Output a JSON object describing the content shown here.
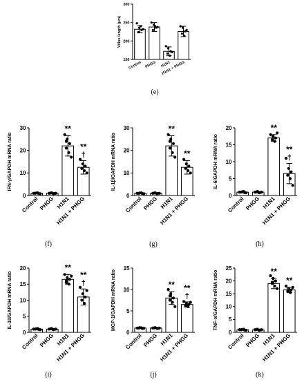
{
  "chart_data": [
    {
      "panel": "(e)",
      "type": "bar",
      "categories": [
        "Control",
        "PHGG",
        "H1N1",
        "H1N1 + PHGG"
      ],
      "values": [
        232,
        238,
        172,
        226
      ],
      "errors": [
        10,
        12,
        12,
        14
      ],
      "points": [
        [
          248,
          236,
          230,
          224,
          240,
          232
        ],
        [
          250,
          244,
          236,
          230,
          240,
          238
        ],
        [
          186,
          180,
          172,
          166,
          160,
          170
        ],
        [
          240,
          236,
          226,
          220,
          214,
          230
        ]
      ],
      "ylabel": "Villus length (μm)",
      "ylim": [
        150,
        300
      ],
      "yticks": [
        150,
        200,
        250,
        300
      ],
      "significance": [
        "",
        "",
        "",
        ""
      ]
    },
    {
      "panel": "(f)",
      "type": "bar",
      "categories": [
        "Control",
        "PHGG",
        "H1N1",
        "H1N1 + PHGG"
      ],
      "values": [
        1,
        1,
        22,
        12.5
      ],
      "errors": [
        0.2,
        0.2,
        4.5,
        3
      ],
      "points": [
        [
          1,
          1.1,
          0.9,
          1,
          1.2,
          0.8
        ],
        [
          1,
          1.2,
          0.9,
          1.1,
          0.8,
          1
        ],
        [
          27,
          25,
          23,
          21,
          19,
          17,
          24
        ],
        [
          16,
          14,
          13,
          12,
          11,
          10
        ]
      ],
      "ylabel": "IFN-γ/GAPDH mRNA ratio",
      "ylim": [
        0,
        30
      ],
      "yticks": [
        0,
        10,
        20,
        30
      ],
      "significance": [
        "",
        "",
        "**",
        "**\n†"
      ]
    },
    {
      "panel": "(g)",
      "type": "bar",
      "categories": [
        "Control",
        "PHGG",
        "H1N1",
        "H1N1 + PHGG"
      ],
      "values": [
        1,
        1,
        22,
        12.5
      ],
      "errors": [
        0.2,
        0.2,
        4.5,
        3
      ],
      "points": [
        [
          1,
          1.1,
          0.9,
          1,
          1.2,
          0.8
        ],
        [
          1,
          1.2,
          0.9,
          1.1,
          0.8,
          1
        ],
        [
          27,
          25,
          23,
          21,
          19,
          17,
          24
        ],
        [
          16,
          14,
          13,
          12,
          11,
          10
        ]
      ],
      "ylabel": "IL-1β/GAPDH mRNA ratio",
      "ylim": [
        0,
        30
      ],
      "yticks": [
        0,
        10,
        20,
        30
      ],
      "significance": [
        "",
        "",
        "**",
        "**"
      ]
    },
    {
      "panel": "(h)",
      "type": "bar",
      "categories": [
        "Control",
        "PHGG",
        "H1N1",
        "H1N1 + PHGG"
      ],
      "values": [
        1,
        1,
        17,
        6.5
      ],
      "errors": [
        0.2,
        0.2,
        1,
        3
      ],
      "points": [
        [
          1,
          1.1,
          0.9,
          1,
          1.2,
          0.8
        ],
        [
          1,
          1.2,
          0.9,
          1.1,
          0.8,
          1
        ],
        [
          18,
          17.5,
          17,
          16.5,
          16,
          18.5
        ],
        [
          11,
          8,
          7,
          6,
          5,
          3
        ]
      ],
      "ylabel": "IL-6/GAPDH mRNA ratio",
      "ylim": [
        0,
        20
      ],
      "yticks": [
        0,
        5,
        10,
        15,
        20
      ],
      "significance": [
        "",
        "",
        "**",
        "**\n†"
      ]
    },
    {
      "panel": "(i)",
      "type": "bar",
      "categories": [
        "Control",
        "PHGG",
        "H1N1",
        "H1N1 + PHGG"
      ],
      "values": [
        1,
        1,
        16.5,
        11
      ],
      "errors": [
        0.2,
        0.2,
        1.5,
        2.5
      ],
      "points": [
        [
          1,
          1.1,
          0.9,
          1,
          1.2,
          0.8
        ],
        [
          1,
          1.2,
          0.9,
          1.1,
          0.8,
          1
        ],
        [
          18,
          17,
          16.5,
          16,
          15,
          17.5,
          15.5
        ],
        [
          14,
          12,
          11,
          10,
          9,
          13
        ]
      ],
      "ylabel": "IL-10/GAPDH mRNA ratio",
      "ylim": [
        0,
        20
      ],
      "yticks": [
        0,
        5,
        10,
        15,
        20
      ],
      "significance": [
        "",
        "",
        "**",
        "**\n†"
      ]
    },
    {
      "panel": "(j)",
      "type": "bar",
      "categories": [
        "Control",
        "PHGG",
        "H1N1",
        "H1N1 + PHGG"
      ],
      "values": [
        1,
        1,
        8,
        6.5
      ],
      "errors": [
        0.1,
        0.1,
        1.5,
        0.6
      ],
      "points": [
        [
          1,
          1.1,
          0.9,
          1,
          1.05,
          0.95
        ],
        [
          1,
          1.1,
          0.9,
          1.05,
          0.95,
          1
        ],
        [
          10,
          9,
          8,
          7.5,
          7,
          6,
          8.5
        ],
        [
          7.2,
          6.8,
          6.5,
          6.2,
          6,
          7
        ]
      ],
      "ylabel": "MCP-1/GAPDH mRNA ratio",
      "ylim": [
        0,
        15
      ],
      "yticks": [
        0,
        5,
        10,
        15
      ],
      "significance": [
        "",
        "",
        "**",
        "**\n†"
      ]
    },
    {
      "panel": "(k)",
      "type": "bar",
      "categories": [
        "Control",
        "PHGG",
        "H1N1",
        "H1N1 + PHGG"
      ],
      "values": [
        1,
        1,
        19,
        16.5
      ],
      "errors": [
        0.2,
        0.2,
        2,
        1
      ],
      "points": [
        [
          1,
          1.1,
          0.9,
          1,
          1.2,
          0.8
        ],
        [
          1,
          1.2,
          0.9,
          1.1,
          0.8,
          1
        ],
        [
          22,
          21,
          20,
          19,
          18,
          17,
          19.5
        ],
        [
          18,
          17,
          16.5,
          16,
          15.5,
          17.5
        ]
      ],
      "ylabel": "TNF-α/GAPDH mRNA ratio",
      "ylim": [
        0,
        25
      ],
      "yticks": [
        0,
        5,
        10,
        15,
        20,
        25
      ],
      "significance": [
        "",
        "",
        "**",
        "**"
      ]
    }
  ]
}
